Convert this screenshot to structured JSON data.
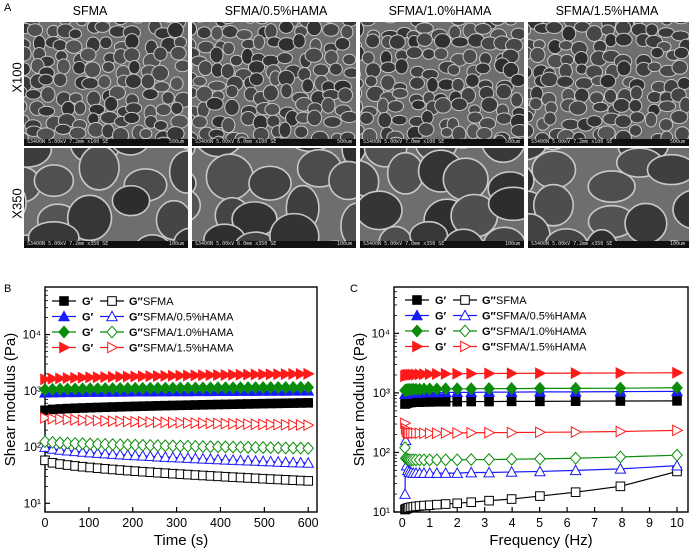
{
  "panel_a": {
    "letter": "A",
    "columns": [
      "SFMA",
      "SFMA/0.5%HAMA",
      "SFMA/1.0%HAMA",
      "SFMA/1.5%HAMA"
    ],
    "rows": [
      "X100",
      "X350"
    ],
    "captions_x100": [
      "S3400N 5.00kV 7.2mm x100 SE",
      "S3400N 5.00kV 6.0mm x100 SE",
      "S3400N 5.00kV 7.0mm x100 SE",
      "S3400N 5.00kV 7.2mm x100 SE"
    ],
    "captions_x350": [
      "S3400N 5.00kV 7.2mm x350 SE",
      "S3400N 5.00kV 6.0mm x350 SE",
      "S3400N 5.00kV 7.0mm x350 SE",
      "S3400N 5.00kV 7.2mm x350 SE"
    ],
    "scale_x100": "500um",
    "scale_x350": "100um"
  },
  "colors": {
    "SFMA": "#000000",
    "SFMA/0.5%HAMA": "#1a1aff",
    "SFMA/1.0%HAMA": "#0a8c0a",
    "SFMA/1.5%HAMA": "#ff1a1a"
  },
  "chart_data": [
    {
      "panel": "B",
      "type": "scatter",
      "title": "",
      "xlabel": "Time (s)",
      "ylabel": "Shear modulus (Pa)",
      "yscale": "log",
      "xlim": [
        0,
        620
      ],
      "ylim": [
        7,
        70000
      ],
      "xticks": [
        0,
        100,
        200,
        300,
        400,
        500,
        600
      ],
      "yticks": [
        10,
        100,
        1000,
        10000
      ],
      "ytick_labels": [
        "10¹",
        "10²",
        "10³",
        "10⁴"
      ],
      "legend_labels": {
        "gp": "G′",
        "gpp": "G″"
      },
      "series": [
        {
          "name": "SFMA",
          "modulus": "G′",
          "marker": "square",
          "fill": true,
          "x_start": 0,
          "x_end": 600,
          "n": 36,
          "y_start": 450,
          "y_end": 610
        },
        {
          "name": "SFMA",
          "modulus": "G″",
          "marker": "square",
          "fill": false,
          "x_start": 0,
          "x_end": 600,
          "n": 36,
          "y_start": 58,
          "y_end": 25
        },
        {
          "name": "SFMA/0.5%HAMA",
          "modulus": "G′",
          "marker": "triangle-up",
          "fill": true,
          "x_start": 0,
          "x_end": 600,
          "n": 36,
          "y_start": 920,
          "y_end": 1000
        },
        {
          "name": "SFMA/0.5%HAMA",
          "modulus": "G″",
          "marker": "triangle-up",
          "fill": false,
          "x_start": 0,
          "x_end": 600,
          "n": 36,
          "y_start": 100,
          "y_end": 52
        },
        {
          "name": "SFMA/1.0%HAMA",
          "modulus": "G′",
          "marker": "diamond",
          "fill": true,
          "x_start": 0,
          "x_end": 600,
          "n": 36,
          "y_start": 1050,
          "y_end": 1150
        },
        {
          "name": "SFMA/1.0%HAMA",
          "modulus": "G″",
          "marker": "diamond",
          "fill": false,
          "x_start": 0,
          "x_end": 600,
          "n": 36,
          "y_start": 125,
          "y_end": 95
        },
        {
          "name": "SFMA/1.5%HAMA",
          "modulus": "G′",
          "marker": "triangle-right",
          "fill": true,
          "x_start": 0,
          "x_end": 600,
          "n": 36,
          "y_start": 1600,
          "y_end": 2000
        },
        {
          "name": "SFMA/1.5%HAMA",
          "modulus": "G″",
          "marker": "triangle-right",
          "fill": false,
          "x_start": 0,
          "x_end": 600,
          "n": 36,
          "y_start": 330,
          "y_end": 245
        }
      ]
    },
    {
      "panel": "C",
      "type": "scatter",
      "title": "",
      "xlabel": "Frequency (Hz)",
      "ylabel": "Shear modulus (Pa)",
      "yscale": "log",
      "xlim": [
        -0.3,
        10.4
      ],
      "ylim": [
        10,
        60000
      ],
      "xticks": [
        0,
        1,
        2,
        3,
        4,
        5,
        6,
        7,
        8,
        9,
        10
      ],
      "yticks": [
        10,
        100,
        1000,
        10000
      ],
      "ytick_labels": [
        "10¹",
        "10²",
        "10³",
        "10⁴"
      ],
      "legend_labels": {
        "gp": "G′",
        "gpp": "G″"
      },
      "x": [
        0.1,
        0.126,
        0.158,
        0.2,
        0.25,
        0.32,
        0.4,
        0.5,
        0.63,
        0.79,
        1.0,
        1.26,
        1.58,
        2.0,
        2.51,
        3.16,
        3.98,
        5.01,
        6.31,
        7.94,
        10.0
      ],
      "series": [
        {
          "name": "SFMA",
          "modulus": "G′",
          "marker": "square",
          "fill": true,
          "values": [
            650,
            660,
            670,
            680,
            690,
            690,
            700,
            700,
            700,
            705,
            705,
            710,
            710,
            710,
            715,
            715,
            720,
            720,
            725,
            730,
            735
          ]
        },
        {
          "name": "SFMA",
          "modulus": "G″",
          "marker": "square",
          "fill": false,
          "values": [
            11,
            11.2,
            11.4,
            11.6,
            11.8,
            12,
            12.2,
            12.4,
            12.6,
            12.8,
            13,
            13.3,
            13.6,
            14,
            14.6,
            15.5,
            16.5,
            18.5,
            21.5,
            27,
            48
          ]
        },
        {
          "name": "SFMA/0.5%HAMA",
          "modulus": "G′",
          "marker": "triangle-up",
          "fill": true,
          "values": [
            950,
            960,
            970,
            980,
            990,
            990,
            1000,
            1000,
            1000,
            1010,
            1010,
            1010,
            1020,
            1020,
            1020,
            1030,
            1030,
            1040,
            1040,
            1050,
            1060
          ]
        },
        {
          "name": "SFMA/0.5%HAMA",
          "modulus": "G″",
          "marker": "triangle-up",
          "fill": false,
          "values": [
            20,
            160,
            60,
            50,
            47,
            46,
            45,
            45,
            45,
            45,
            45,
            45,
            45,
            45,
            46,
            46,
            47,
            48,
            50,
            53,
            60
          ]
        },
        {
          "name": "SFMA/1.0%HAMA",
          "modulus": "G′",
          "marker": "diamond",
          "fill": true,
          "values": [
            1100,
            1110,
            1120,
            1130,
            1140,
            1140,
            1150,
            1150,
            1150,
            1160,
            1160,
            1160,
            1170,
            1170,
            1170,
            1180,
            1180,
            1190,
            1190,
            1200,
            1220
          ]
        },
        {
          "name": "SFMA/1.0%HAMA",
          "modulus": "G″",
          "marker": "diamond",
          "fill": false,
          "values": [
            120,
            80,
            78,
            76,
            75,
            75,
            75,
            75,
            75,
            75,
            75,
            75,
            75,
            75,
            76,
            76,
            77,
            78,
            80,
            84,
            90
          ]
        },
        {
          "name": "SFMA/1.5%HAMA",
          "modulus": "G′",
          "marker": "triangle-right",
          "fill": true,
          "values": [
            1900,
            1950,
            1980,
            2000,
            2010,
            2020,
            2030,
            2040,
            2050,
            2060,
            2070,
            2080,
            2090,
            2100,
            2110,
            2120,
            2130,
            2140,
            2150,
            2160,
            2180
          ]
        },
        {
          "name": "SFMA/1.5%HAMA",
          "modulus": "G″",
          "marker": "triangle-right",
          "fill": false,
          "values": [
            310,
            250,
            225,
            215,
            210,
            210,
            210,
            210,
            210,
            210,
            210,
            210,
            212,
            212,
            214,
            215,
            216,
            218,
            220,
            225,
            235
          ]
        }
      ]
    }
  ]
}
